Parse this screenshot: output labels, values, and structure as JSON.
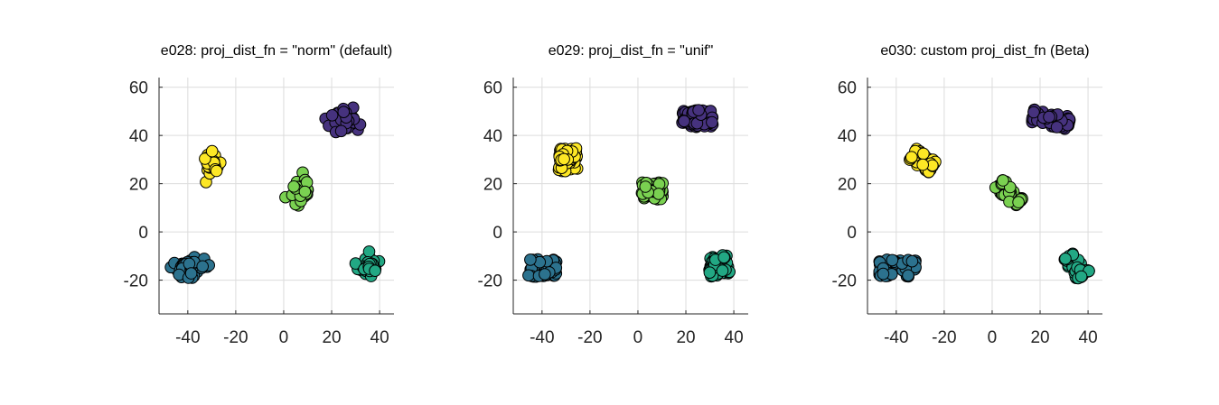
{
  "chart_data": [
    {
      "type": "scatter",
      "title": "e028: proj_dist_fn = \"norm\" (default)",
      "xlabel": "",
      "ylabel": "",
      "xlim": [
        -52,
        46
      ],
      "ylim": [
        -34,
        64
      ],
      "xticks": [
        -40,
        -20,
        0,
        20,
        40
      ],
      "yticks": [
        -20,
        0,
        20,
        40,
        60
      ],
      "grid": true,
      "distribution": "normal",
      "clusters": [
        {
          "color": "#46327e",
          "center": [
            24,
            46
          ],
          "spread": [
            3,
            2.3
          ],
          "points": 60
        },
        {
          "color": "#fde725",
          "center": [
            -30,
            29
          ],
          "spread": [
            1.6,
            2.4
          ],
          "points": 45
        },
        {
          "color": "#7ad151",
          "center": [
            7,
            17
          ],
          "spread": [
            2.3,
            2.6
          ],
          "points": 50
        },
        {
          "color": "#2c728e",
          "center": [
            -40,
            -15
          ],
          "spread": [
            3.2,
            1.8
          ],
          "points": 60
        },
        {
          "color": "#22a884",
          "center": [
            35,
            -14
          ],
          "spread": [
            2.2,
            2.0
          ],
          "points": 50
        }
      ]
    },
    {
      "type": "scatter",
      "title": "e029: proj_dist_fn = \"unif\"",
      "xlabel": "",
      "ylabel": "",
      "xlim": [
        -52,
        46
      ],
      "ylim": [
        -34,
        64
      ],
      "xticks": [
        -40,
        -20,
        0,
        20,
        40
      ],
      "yticks": [
        -20,
        0,
        20,
        40,
        60
      ],
      "grid": true,
      "distribution": "uniform",
      "clusters": [
        {
          "color": "#46327e",
          "center": [
            25,
            47
          ],
          "spread": [
            6.5,
            3.5
          ],
          "points": 80
        },
        {
          "color": "#fde725",
          "center": [
            -29,
            30
          ],
          "spread": [
            4.0,
            5.0
          ],
          "points": 60
        },
        {
          "color": "#7ad151",
          "center": [
            6,
            17
          ],
          "spread": [
            4.5,
            3.6
          ],
          "points": 60
        },
        {
          "color": "#2c728e",
          "center": [
            -40,
            -15
          ],
          "spread": [
            6.0,
            3.6
          ],
          "points": 80
        },
        {
          "color": "#22a884",
          "center": [
            34,
            -14
          ],
          "spread": [
            4.2,
            4.6
          ],
          "points": 60
        }
      ]
    },
    {
      "type": "scatter",
      "title": "e030: custom proj_dist_fn (Beta)",
      "xlabel": "",
      "ylabel": "",
      "xlim": [
        -52,
        46
      ],
      "ylim": [
        -34,
        64
      ],
      "xticks": [
        -40,
        -20,
        0,
        20,
        40
      ],
      "yticks": [
        -20,
        0,
        20,
        40,
        60
      ],
      "grid": true,
      "distribution": "beta",
      "clusters": [
        {
          "color": "#46327e",
          "from": [
            17,
            48
          ],
          "to": [
            32,
            45
          ],
          "spread": 2.8,
          "points": 60
        },
        {
          "color": "#fde725",
          "from": [
            -33,
            32
          ],
          "to": [
            -25,
            27
          ],
          "spread": 2.8,
          "points": 50
        },
        {
          "color": "#7ad151",
          "from": [
            3,
            20
          ],
          "to": [
            11,
            12
          ],
          "spread": 2.5,
          "points": 50
        },
        {
          "color": "#2c728e",
          "from": [
            -47,
            -15
          ],
          "to": [
            -32,
            -15
          ],
          "spread": 3.6,
          "points": 60
        },
        {
          "color": "#22a884",
          "from": [
            32,
            -10
          ],
          "to": [
            38,
            -18
          ],
          "spread": 3.2,
          "points": 55
        }
      ]
    }
  ]
}
